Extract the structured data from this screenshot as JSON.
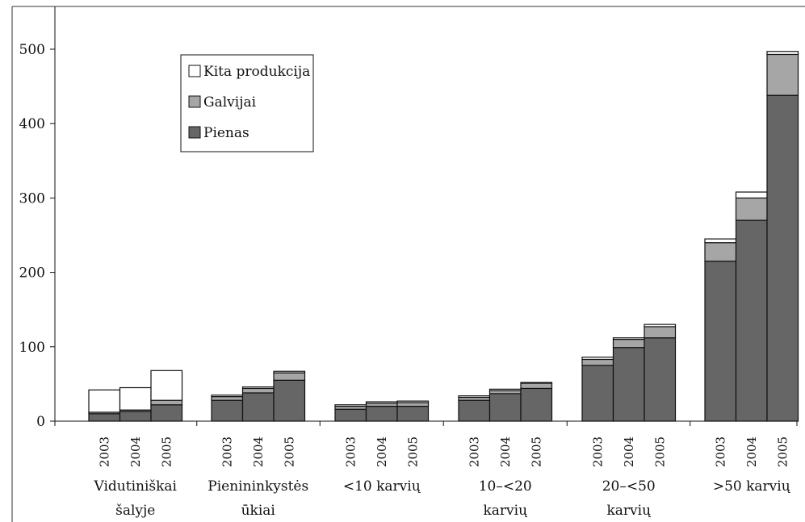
{
  "chart_data": {
    "type": "bar",
    "stacked": true,
    "title": "",
    "xlabel": "",
    "ylabel": "",
    "ylim": [
      0,
      550
    ],
    "yticks": [
      0,
      100,
      200,
      300,
      400,
      500
    ],
    "grid": false,
    "legend_position": "top-left",
    "groups": [
      {
        "label_lines": [
          "Vidutiniškai",
          "šalyje"
        ],
        "years": [
          "2003",
          "2004",
          "2005"
        ]
      },
      {
        "label_lines": [
          "Pienininkystės",
          "ūkiai"
        ],
        "years": [
          "2003",
          "2004",
          "2005"
        ]
      },
      {
        "label_lines": [
          "<10 karvių"
        ],
        "years": [
          "2003",
          "2004",
          "2005"
        ]
      },
      {
        "label_lines": [
          "10–<20",
          "karvių"
        ],
        "years": [
          "2003",
          "2004",
          "2005"
        ]
      },
      {
        "label_lines": [
          "20–<50",
          "karvių"
        ],
        "years": [
          "2003",
          "2004",
          "2005"
        ]
      },
      {
        "label_lines": [
          ">50 karvių"
        ],
        "years": [
          "2003",
          "2004",
          "2005"
        ]
      }
    ],
    "series": [
      {
        "name": "Pienas",
        "color": "#666666",
        "values": [
          [
            10,
            13,
            22
          ],
          [
            28,
            38,
            55
          ],
          [
            16,
            20,
            20
          ],
          [
            28,
            37,
            44
          ],
          [
            75,
            99,
            112
          ],
          [
            215,
            270,
            438
          ]
        ]
      },
      {
        "name": "Galvijai",
        "color": "#a6a6a6",
        "values": [
          [
            2,
            2,
            6
          ],
          [
            5,
            6,
            10
          ],
          [
            4,
            4,
            5
          ],
          [
            4,
            4,
            7
          ],
          [
            8,
            11,
            15
          ],
          [
            25,
            30,
            55
          ]
        ]
      },
      {
        "name": "Kita produkcija",
        "color": "#ffffff",
        "values": [
          [
            30,
            30,
            40
          ],
          [
            2,
            2,
            2
          ],
          [
            2,
            2,
            2
          ],
          [
            2,
            2,
            1
          ],
          [
            3,
            2,
            3
          ],
          [
            5,
            8,
            4
          ]
        ]
      }
    ],
    "legend": [
      "Kita produkcija",
      "Galvijai",
      "Pienas"
    ]
  }
}
